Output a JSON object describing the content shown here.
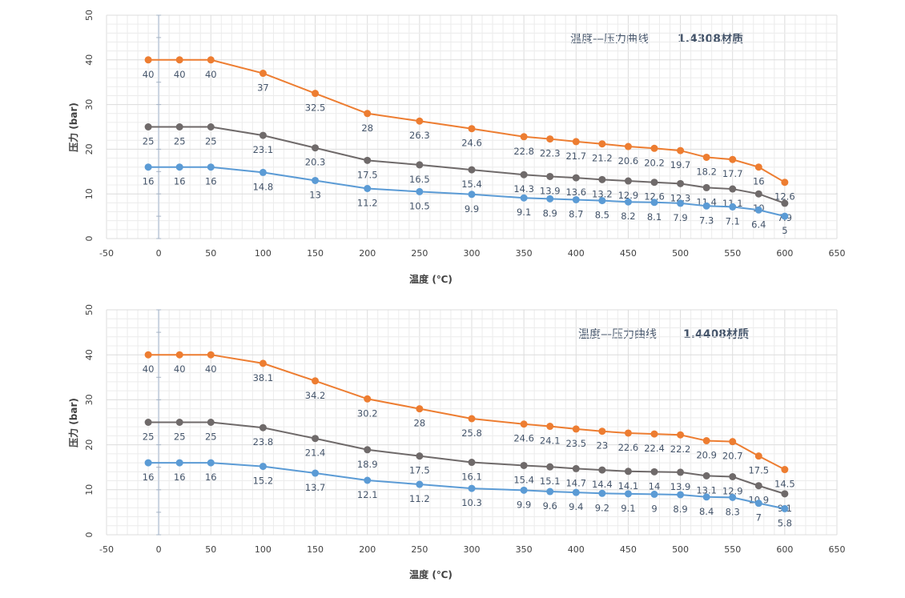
{
  "colors": {
    "orange": "#ed7d31",
    "gray": "#6f6a6a",
    "blue": "#5b9bd5",
    "axis": "#404040"
  },
  "chart_data": [
    {
      "type": "line",
      "title": "温度—压力曲线",
      "title_material": "1.4308材质",
      "xlabel": "温度 (℃)",
      "ylabel": "压力 (bar)",
      "xlim": [
        -50,
        650
      ],
      "ylim": [
        0,
        50
      ],
      "xticks": [
        -50,
        0,
        50,
        100,
        150,
        200,
        250,
        300,
        350,
        400,
        450,
        500,
        550,
        600,
        650
      ],
      "yticks": [
        0,
        10,
        20,
        30,
        40,
        50
      ],
      "x": [
        -10,
        20,
        50,
        100,
        150,
        200,
        250,
        300,
        350,
        375,
        400,
        425,
        450,
        475,
        500,
        525,
        550,
        575,
        600
      ],
      "series": [
        {
          "name": "orange",
          "color": "#ed7d31",
          "values": [
            40,
            40,
            40,
            37,
            32.5,
            28,
            26.3,
            24.6,
            22.8,
            22.3,
            21.7,
            21.2,
            20.6,
            20.2,
            19.7,
            18.2,
            17.7,
            16,
            12.6
          ]
        },
        {
          "name": "gray",
          "color": "#6f6a6a",
          "values": [
            25,
            25,
            25,
            23.1,
            20.3,
            17.5,
            16.5,
            15.4,
            14.3,
            13.9,
            13.6,
            13.2,
            12.9,
            12.6,
            12.3,
            11.4,
            11.1,
            10,
            7.9
          ]
        },
        {
          "name": "blue",
          "color": "#5b9bd5",
          "values": [
            16,
            16,
            16,
            14.8,
            13,
            11.2,
            10.5,
            9.9,
            9.1,
            8.9,
            8.7,
            8.5,
            8.2,
            8.1,
            7.9,
            7.3,
            7.1,
            6.4,
            5
          ]
        }
      ]
    },
    {
      "type": "line",
      "title": "温度—压力曲线",
      "title_material": "1.4408材质",
      "xlabel": "温度 (℃)",
      "ylabel": "压力 (bar)",
      "xlim": [
        -50,
        650
      ],
      "ylim": [
        0,
        50
      ],
      "xticks": [
        -50,
        0,
        50,
        100,
        150,
        200,
        250,
        300,
        350,
        400,
        450,
        500,
        550,
        600,
        650
      ],
      "yticks": [
        0,
        10,
        20,
        30,
        40,
        50
      ],
      "x": [
        -10,
        20,
        50,
        100,
        150,
        200,
        250,
        300,
        350,
        375,
        400,
        425,
        450,
        475,
        500,
        525,
        550,
        575,
        600
      ],
      "series": [
        {
          "name": "orange",
          "color": "#ed7d31",
          "values": [
            40,
            40,
            40,
            38.1,
            34.2,
            30.2,
            28,
            25.8,
            24.6,
            24.1,
            23.5,
            23,
            22.6,
            22.4,
            22.2,
            20.9,
            20.7,
            17.5,
            14.5
          ]
        },
        {
          "name": "gray",
          "color": "#6f6a6a",
          "values": [
            25,
            25,
            25,
            23.8,
            21.4,
            18.9,
            17.5,
            16.1,
            15.4,
            15.1,
            14.7,
            14.4,
            14.1,
            14,
            13.9,
            13.1,
            12.9,
            10.9,
            9.1
          ]
        },
        {
          "name": "blue",
          "color": "#5b9bd5",
          "values": [
            16,
            16,
            16,
            15.2,
            13.7,
            12.1,
            11.2,
            10.3,
            9.9,
            9.6,
            9.4,
            9.2,
            9.1,
            9,
            8.9,
            8.4,
            8.3,
            7,
            5.8
          ]
        }
      ]
    }
  ]
}
